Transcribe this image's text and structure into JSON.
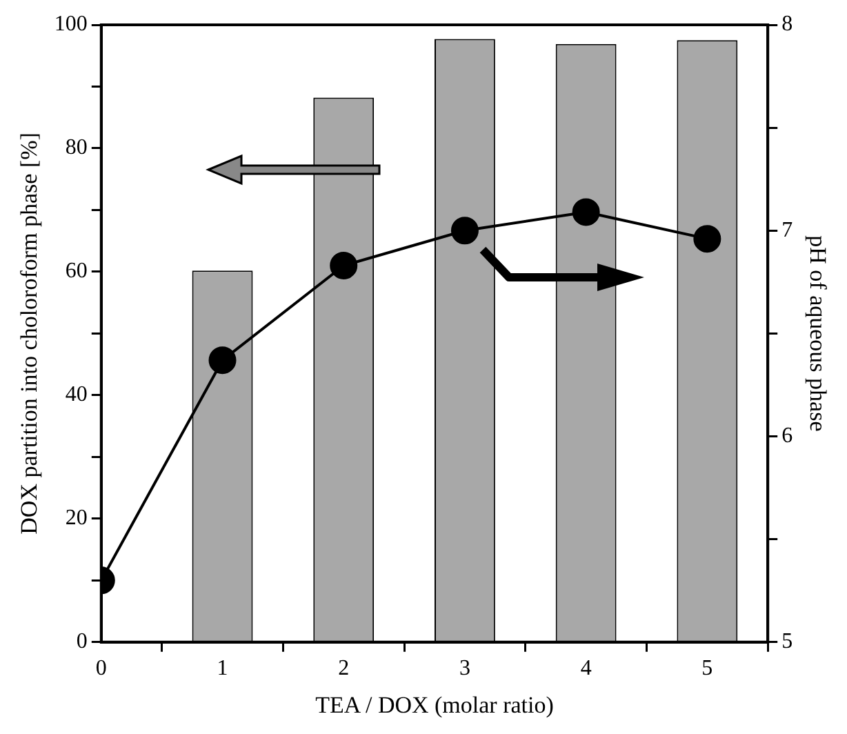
{
  "chart_data": {
    "type": "bar",
    "xlabel": "TEA / DOX (molar ratio)",
    "ylabel": "DOX partition into choloroform phase [%]",
    "y2label": "pH of aqueous phase",
    "x": [
      0,
      1,
      2,
      3,
      4,
      5
    ],
    "xlim": [
      0,
      5.5
    ],
    "xticks": [
      0,
      1,
      2,
      3,
      4,
      5
    ],
    "ylim": [
      0,
      100
    ],
    "yticks": [
      0,
      {
        "value": 10,
        "label": null
      },
      20,
      {
        "value": 30,
        "label": null
      },
      40,
      {
        "value": 50,
        "label": null
      },
      60,
      {
        "value": 70,
        "label": null
      },
      80,
      {
        "value": 90,
        "label": null
      },
      100
    ],
    "y2lim": [
      5,
      8
    ],
    "y2ticks": [
      5,
      {
        "value": 5.5,
        "label": null
      },
      6,
      {
        "value": 6.5,
        "label": null
      },
      7,
      {
        "value": 7.5,
        "label": null
      },
      8
    ],
    "series": [
      {
        "color": "#a8a8a8",
        "values": [
          null,
          60.2,
          88.2,
          97.7,
          96.9,
          97.5
        ]
      },
      {
        "type": "line",
        "axis": "y2",
        "color": "#000000",
        "values": [
          5.3,
          6.37,
          6.83,
          7.0,
          7.09,
          6.96
        ]
      }
    ],
    "marker": "circle",
    "line_style": "solid",
    "grid": false,
    "legend": false
  }
}
